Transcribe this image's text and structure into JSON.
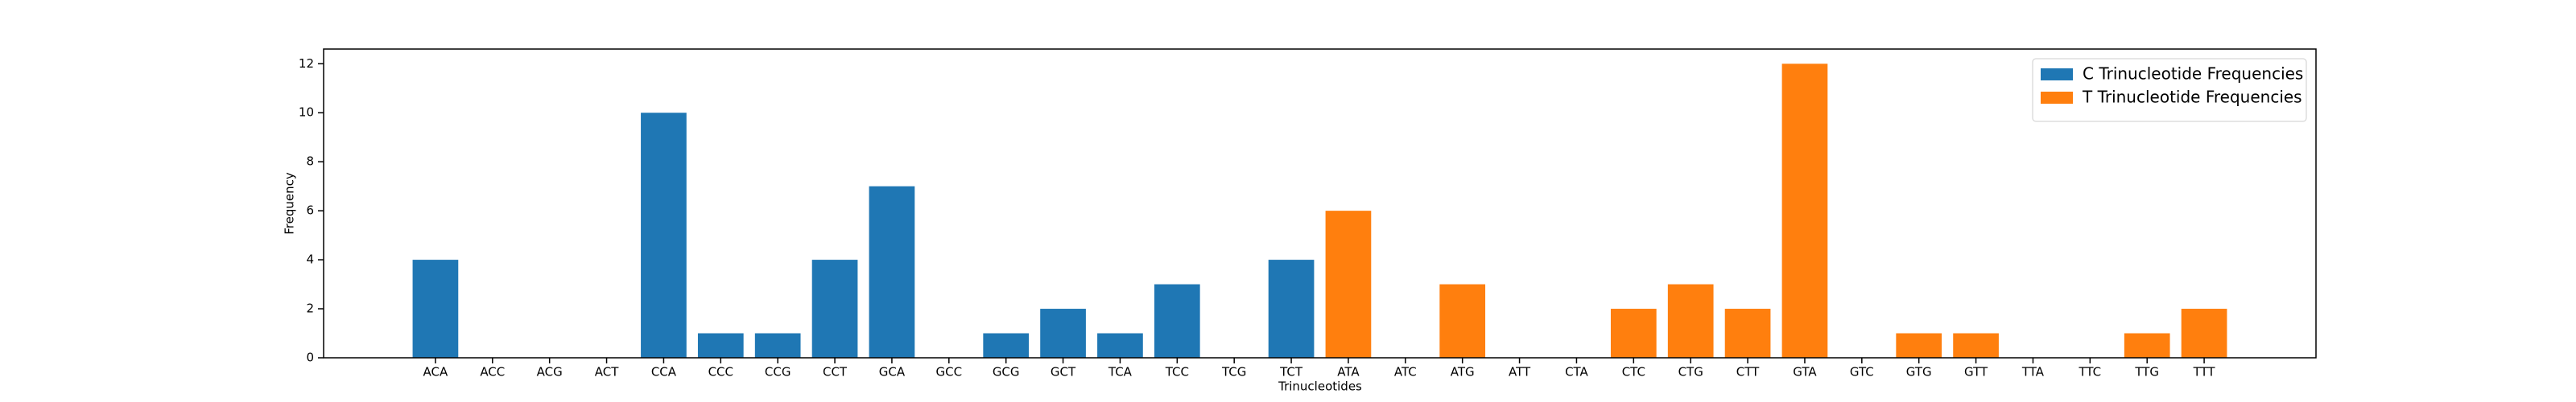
{
  "chart_data": {
    "type": "bar",
    "x_label": "Trinucleotides",
    "y_label": "Frequency",
    "categories": [
      "ACA",
      "ACC",
      "ACG",
      "ACT",
      "CCA",
      "CCC",
      "CCG",
      "CCT",
      "GCA",
      "GCC",
      "GCG",
      "GCT",
      "TCA",
      "TCC",
      "TCG",
      "TCT",
      "ATA",
      "ATC",
      "ATG",
      "ATT",
      "CTA",
      "CTC",
      "CTG",
      "CTT",
      "GTA",
      "GTC",
      "GTG",
      "GTT",
      "TTA",
      "TTC",
      "TTG",
      "TTT"
    ],
    "series": [
      {
        "name": "C Trinucleotide Frequencies",
        "color": "#1f77b4",
        "values": [
          4,
          0,
          0,
          0,
          10,
          1,
          1,
          4,
          7,
          0,
          1,
          2,
          1,
          3,
          0,
          4,
          null,
          null,
          null,
          null,
          null,
          null,
          null,
          null,
          null,
          null,
          null,
          null,
          null,
          null,
          null,
          null
        ]
      },
      {
        "name": "T Trinucleotide Frequencies",
        "color": "#ff7f0e",
        "values": [
          null,
          null,
          null,
          null,
          null,
          null,
          null,
          null,
          null,
          null,
          null,
          null,
          null,
          null,
          null,
          null,
          6,
          0,
          3,
          0,
          0,
          2,
          3,
          2,
          12,
          0,
          1,
          1,
          0,
          0,
          1,
          2
        ]
      }
    ],
    "ylim": [
      0,
      12.6
    ],
    "yticks": [
      0,
      2,
      4,
      6,
      8,
      10,
      12
    ],
    "legend": "upper right"
  }
}
